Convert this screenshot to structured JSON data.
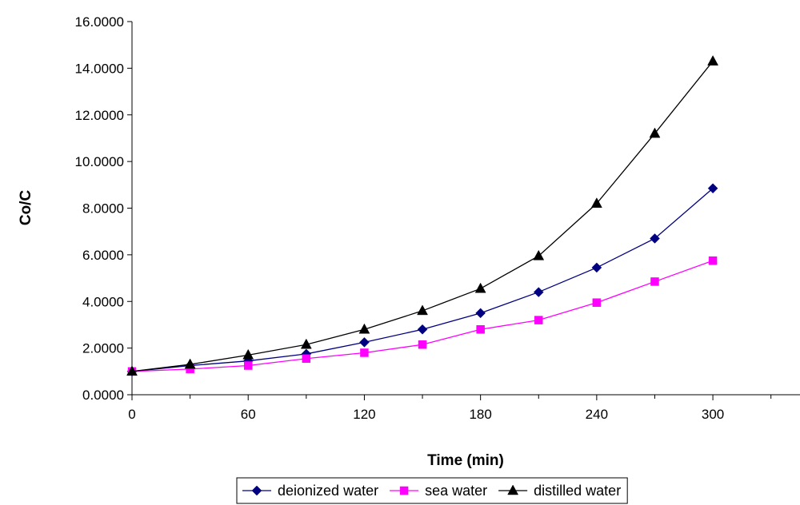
{
  "chart_data": {
    "type": "line",
    "title": "",
    "xlabel": "Time (min)",
    "ylabel": "Co/C",
    "xlim": [
      0,
      345
    ],
    "ylim": [
      0,
      16
    ],
    "xticks": [
      0,
      60,
      120,
      180,
      240,
      300
    ],
    "xtick_labels": [
      "0",
      "60",
      "120",
      "180",
      "240",
      "300"
    ],
    "yticks": [
      0,
      2,
      4,
      6,
      8,
      10,
      12,
      14,
      16
    ],
    "ytick_labels": [
      "0.0000",
      "2.0000",
      "4.0000",
      "6.0000",
      "8.0000",
      "10.0000",
      "12.0000",
      "14.0000",
      "16.0000"
    ],
    "grid": false,
    "legend_position": "bottom",
    "x": [
      0,
      30,
      60,
      90,
      120,
      150,
      180,
      210,
      240,
      270,
      300
    ],
    "series": [
      {
        "name": "deionized water",
        "color": "#000080",
        "marker": "diamond",
        "values": [
          1.0,
          1.25,
          1.45,
          1.75,
          2.25,
          2.8,
          3.5,
          4.4,
          5.45,
          6.7,
          8.85
        ]
      },
      {
        "name": "sea water",
        "color": "#ff00ff",
        "marker": "square",
        "values": [
          1.0,
          1.1,
          1.25,
          1.55,
          1.8,
          2.15,
          2.8,
          3.2,
          3.95,
          4.85,
          5.75
        ]
      },
      {
        "name": "distilled water",
        "color": "#000000",
        "marker": "triangle",
        "values": [
          1.0,
          1.3,
          1.7,
          2.15,
          2.8,
          3.6,
          4.55,
          5.95,
          8.2,
          11.2,
          14.3
        ]
      }
    ]
  }
}
